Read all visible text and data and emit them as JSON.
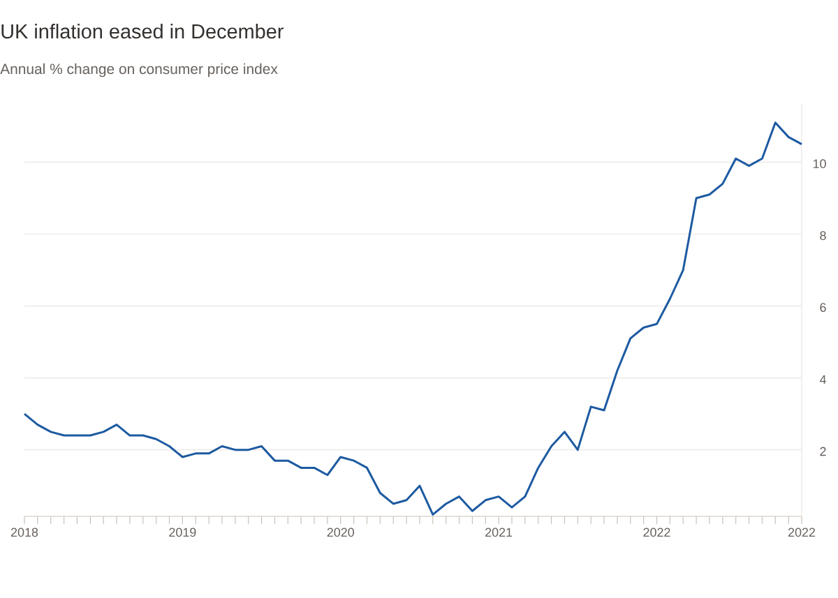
{
  "chart_data": {
    "type": "line",
    "title": "UK inflation eased in December",
    "subtitle": "Annual % change on consumer price index",
    "x": [
      "2018-01",
      "2018-02",
      "2018-03",
      "2018-04",
      "2018-05",
      "2018-06",
      "2018-07",
      "2018-08",
      "2018-09",
      "2018-10",
      "2018-11",
      "2018-12",
      "2019-01",
      "2019-02",
      "2019-03",
      "2019-04",
      "2019-05",
      "2019-06",
      "2019-07",
      "2019-08",
      "2019-09",
      "2019-10",
      "2019-11",
      "2019-12",
      "2020-01",
      "2020-02",
      "2020-03",
      "2020-04",
      "2020-05",
      "2020-06",
      "2020-07",
      "2020-08",
      "2020-09",
      "2020-10",
      "2020-11",
      "2020-12",
      "2021-01",
      "2021-02",
      "2021-03",
      "2021-04",
      "2021-05",
      "2021-06",
      "2021-07",
      "2021-08",
      "2021-09",
      "2021-10",
      "2021-11",
      "2021-12",
      "2022-01",
      "2022-02",
      "2022-03",
      "2022-04",
      "2022-05",
      "2022-06",
      "2022-07",
      "2022-08",
      "2022-09",
      "2022-10",
      "2022-11",
      "2022-12"
    ],
    "series": [
      {
        "color": "#1d5aa1",
        "line_style": "solid",
        "values": [
          3.0,
          2.7,
          2.5,
          2.4,
          2.4,
          2.4,
          2.5,
          2.7,
          2.4,
          2.4,
          2.3,
          2.1,
          1.8,
          1.9,
          1.9,
          2.1,
          2.0,
          2.0,
          2.1,
          1.7,
          1.7,
          1.5,
          1.5,
          1.3,
          1.8,
          1.7,
          1.5,
          0.8,
          0.5,
          0.6,
          1.0,
          0.2,
          0.5,
          0.7,
          0.3,
          0.6,
          0.7,
          0.4,
          0.7,
          1.5,
          2.1,
          2.5,
          2.0,
          3.2,
          3.1,
          4.2,
          5.1,
          5.4,
          5.5,
          6.2,
          7.0,
          9.0,
          9.1,
          9.4,
          10.1,
          9.9,
          10.1,
          11.1,
          10.7,
          10.5
        ]
      }
    ],
    "xlim": [
      "2018-01",
      "2022-12"
    ],
    "xticks": [
      {
        "value": "2018-01",
        "label": "2018"
      },
      {
        "value": "2018-02",
        "label": null
      },
      {
        "value": "2018-03",
        "label": null
      },
      {
        "value": "2018-04",
        "label": null
      },
      {
        "value": "2018-05",
        "label": null
      },
      {
        "value": "2018-06",
        "label": null
      },
      {
        "value": "2018-07",
        "label": null
      },
      {
        "value": "2018-08",
        "label": null
      },
      {
        "value": "2018-09",
        "label": null
      },
      {
        "value": "2018-10",
        "label": null
      },
      {
        "value": "2018-11",
        "label": null
      },
      {
        "value": "2018-12",
        "label": null
      },
      {
        "value": "2019-01",
        "label": "2019"
      },
      {
        "value": "2019-02",
        "label": null
      },
      {
        "value": "2019-03",
        "label": null
      },
      {
        "value": "2019-04",
        "label": null
      },
      {
        "value": "2019-05",
        "label": null
      },
      {
        "value": "2019-06",
        "label": null
      },
      {
        "value": "2019-07",
        "label": null
      },
      {
        "value": "2019-08",
        "label": null
      },
      {
        "value": "2019-09",
        "label": null
      },
      {
        "value": "2019-10",
        "label": null
      },
      {
        "value": "2019-11",
        "label": null
      },
      {
        "value": "2019-12",
        "label": null
      },
      {
        "value": "2020-01",
        "label": "2020"
      },
      {
        "value": "2020-02",
        "label": null
      },
      {
        "value": "2020-03",
        "label": null
      },
      {
        "value": "2020-04",
        "label": null
      },
      {
        "value": "2020-05",
        "label": null
      },
      {
        "value": "2020-06",
        "label": null
      },
      {
        "value": "2020-07",
        "label": null
      },
      {
        "value": "2020-08",
        "label": null
      },
      {
        "value": "2020-09",
        "label": null
      },
      {
        "value": "2020-10",
        "label": null
      },
      {
        "value": "2020-11",
        "label": null
      },
      {
        "value": "2020-12",
        "label": null
      },
      {
        "value": "2021-01",
        "label": "2021"
      },
      {
        "value": "2021-02",
        "label": null
      },
      {
        "value": "2021-03",
        "label": null
      },
      {
        "value": "2021-04",
        "label": null
      },
      {
        "value": "2021-05",
        "label": null
      },
      {
        "value": "2021-06",
        "label": null
      },
      {
        "value": "2021-07",
        "label": null
      },
      {
        "value": "2021-08",
        "label": null
      },
      {
        "value": "2021-09",
        "label": null
      },
      {
        "value": "2021-10",
        "label": null
      },
      {
        "value": "2021-11",
        "label": null
      },
      {
        "value": "2021-12",
        "label": null
      },
      {
        "value": "2022-01",
        "label": "2022"
      },
      {
        "value": "2022-02",
        "label": null
      },
      {
        "value": "2022-03",
        "label": null
      },
      {
        "value": "2022-04",
        "label": null
      },
      {
        "value": "2022-05",
        "label": null
      },
      {
        "value": "2022-06",
        "label": null
      },
      {
        "value": "2022-07",
        "label": null
      },
      {
        "value": "2022-08",
        "label": null
      },
      {
        "value": "2022-09",
        "label": null
      },
      {
        "value": "2022-10",
        "label": null
      },
      {
        "value": "2022-11",
        "label": null
      },
      {
        "value": "2022-12",
        "label": "2022"
      }
    ],
    "ylim": [
      0.15,
      11.6
    ],
    "yticks": [
      2,
      4,
      6,
      8,
      10
    ],
    "grid": "y"
  }
}
